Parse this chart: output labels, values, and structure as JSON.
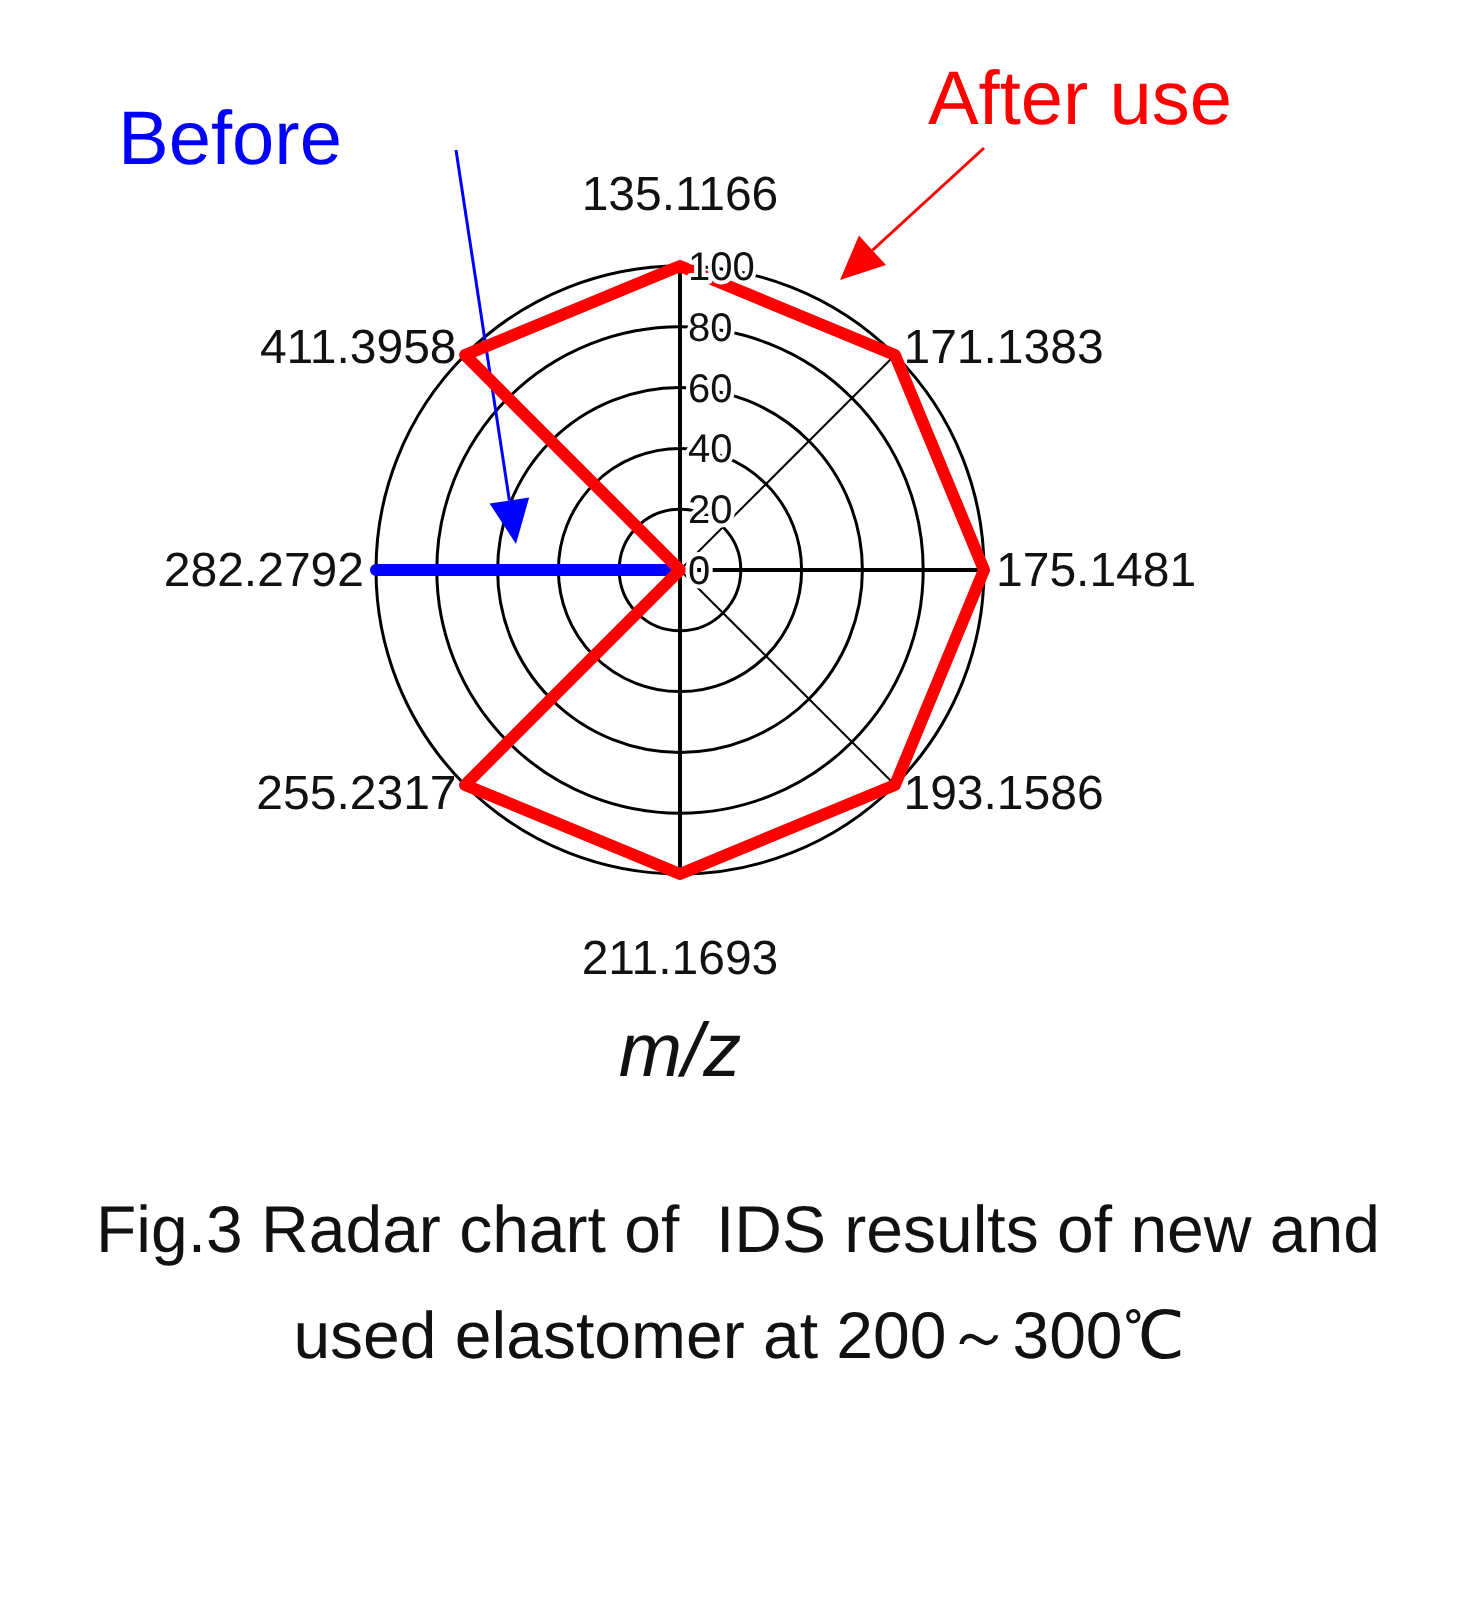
{
  "chart_data": {
    "type": "radar",
    "title": "Fig.3 Radar chart of  IDS results of new and used elastomer at 200～300℃",
    "xlabel": "m/z",
    "categories": [
      "135.1166",
      "171.1383",
      "175.1481",
      "193.1586",
      "211.1693",
      "255.2317",
      "282.2792",
      "411.3958"
    ],
    "series": [
      {
        "name": "Before",
        "color": "#0000ff",
        "values": [
          0,
          0,
          0,
          0,
          0,
          0,
          100,
          0
        ]
      },
      {
        "name": "After use",
        "color": "#ff0000",
        "values": [
          100,
          100,
          100,
          100,
          100,
          100,
          0,
          100
        ]
      }
    ],
    "ylim": [
      0,
      100
    ],
    "yticks": [
      0,
      20,
      40,
      60,
      80,
      100
    ],
    "grid": true,
    "legend": false,
    "marker": "none",
    "line_style": "solid"
  }
}
